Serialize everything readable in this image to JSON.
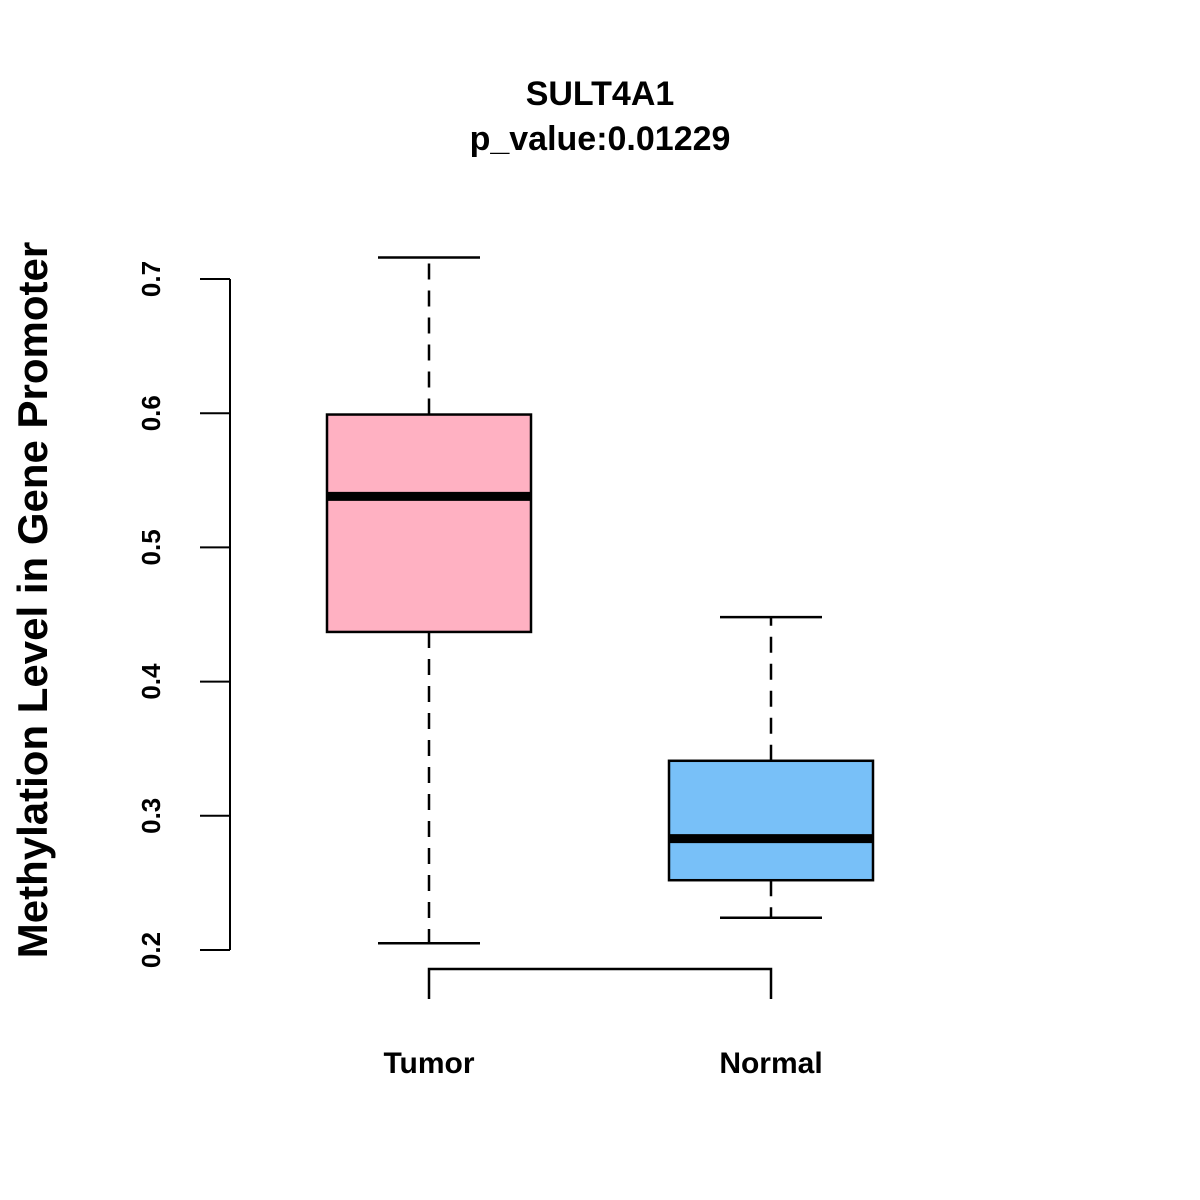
{
  "chart_data": {
    "type": "boxplot",
    "title": "SULT4A1",
    "subtitle": "p_value:0.01229",
    "ylabel": "Methylation Level in Gene Promoter",
    "xlabel": "",
    "ylim": [
      0.2,
      0.7
    ],
    "yticks": [
      "0.2",
      "0.3",
      "0.4",
      "0.5",
      "0.6",
      "0.7"
    ],
    "categories": [
      "Tumor",
      "Normal"
    ],
    "series": [
      {
        "name": "Tumor",
        "min": 0.205,
        "q1": 0.437,
        "median": 0.538,
        "q3": 0.599,
        "max": 0.716,
        "color": "#FFB1C2"
      },
      {
        "name": "Normal",
        "min": 0.224,
        "q1": 0.252,
        "median": 0.283,
        "q3": 0.341,
        "max": 0.448,
        "color": "#78C0F8"
      }
    ],
    "significance_bracket": {
      "from": "Tumor",
      "to": "Normal",
      "label": ""
    }
  }
}
